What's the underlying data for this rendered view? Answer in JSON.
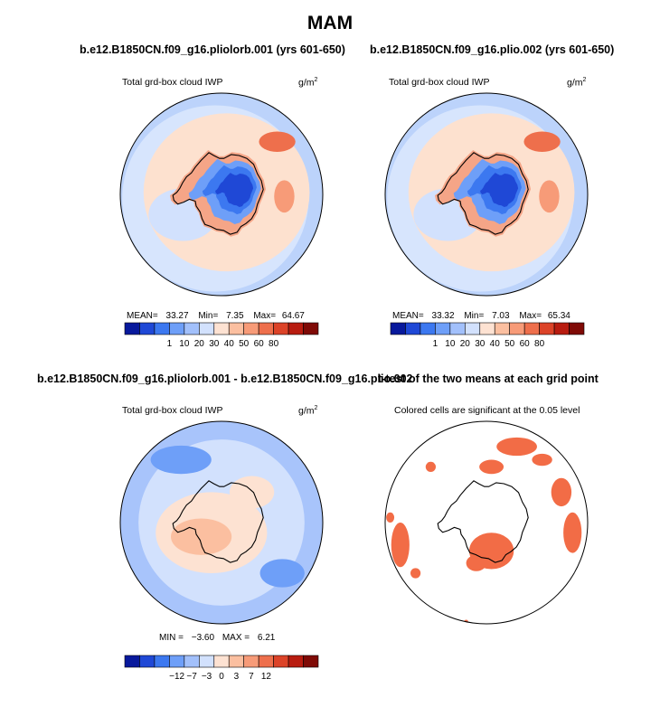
{
  "title": "MAM",
  "panels": [
    {
      "title": "b.e12.B1850CN.f09_g16.pliolorb.001 (yrs 601-650)",
      "variable": "Total grd-box cloud IWP",
      "units": "g/m",
      "units_exp": "2",
      "stats": {
        "mean_label": "MEAN=",
        "mean": "33.27",
        "min_label": "Min=",
        "min": "7.35",
        "max_label": "Max=",
        "max": "64.67"
      }
    },
    {
      "title": "b.e12.B1850CN.f09_g16.plio.002 (yrs 601-650)",
      "variable": "Total grd-box cloud IWP",
      "units": "g/m",
      "units_exp": "2",
      "stats": {
        "mean_label": "MEAN=",
        "mean": "33.32",
        "min_label": "Min=",
        "min": "7.03",
        "max_label": "Max=",
        "max": "65.34"
      }
    },
    {
      "title": "b.e12.B1850CN.f09_g16.pliolorb.001 - b.e12.B1850CN.f09_g16.plio.002",
      "variable": "Total grd-box cloud IWP",
      "units": "g/m",
      "units_exp": "2",
      "stats": {
        "min_label": "MIN =",
        "min": "−3.60",
        "max_label": "MAX =",
        "max": "6.21"
      }
    },
    {
      "title": "t-test of the two means at each grid point",
      "subtitle": "Colored cells are significant at the 0.05 level"
    }
  ],
  "colorbars": {
    "mean": {
      "labels": [
        "1",
        "10",
        "20",
        "30",
        "40",
        "50",
        "60",
        "80"
      ],
      "colors": [
        "#08199c",
        "#1f48d6",
        "#3c78f0",
        "#6e9ff8",
        "#a2c0fb",
        "#d2e1fd",
        "#fde2d2",
        "#fbbfa0",
        "#f79b78",
        "#ee6f4c",
        "#dc4328",
        "#b81c10",
        "#7f0a06"
      ]
    },
    "diff": {
      "labels": [
        "−12",
        "−7",
        "−3",
        "0",
        "3",
        "7",
        "12"
      ],
      "colors": [
        "#08199c",
        "#1f48d6",
        "#3c78f0",
        "#6e9ff8",
        "#a2c0fb",
        "#d2e1fd",
        "#fde2d2",
        "#fbbfa0",
        "#f79b78",
        "#ee6f4c",
        "#dc4328",
        "#b81c10",
        "#7f0a06"
      ]
    }
  },
  "chart_data": [
    {
      "type": "heatmap",
      "title": "b.e12.B1850CN.f09_g16.pliolorb.001 (yrs 601-650)",
      "variable": "Total grd-box cloud IWP",
      "units": "g/m2",
      "projection": "south polar stereographic",
      "mean": 33.27,
      "min": 7.35,
      "max": 64.67,
      "contour_levels": [
        1,
        5,
        10,
        15,
        20,
        25,
        30,
        35,
        40,
        45,
        50,
        60,
        70,
        80
      ]
    },
    {
      "type": "heatmap",
      "title": "b.e12.B1850CN.f09_g16.plio.002 (yrs 601-650)",
      "variable": "Total grd-box cloud IWP",
      "units": "g/m2",
      "projection": "south polar stereographic",
      "mean": 33.32,
      "min": 7.03,
      "max": 65.34,
      "contour_levels": [
        1,
        5,
        10,
        15,
        20,
        25,
        30,
        35,
        40,
        45,
        50,
        60,
        70,
        80
      ]
    },
    {
      "type": "heatmap",
      "title": "b.e12.B1850CN.f09_g16.pliolorb.001 - b.e12.B1850CN.f09_g16.plio.002",
      "variable": "Total grd-box cloud IWP",
      "units": "g/m2",
      "projection": "south polar stereographic",
      "min": -3.6,
      "max": 6.21,
      "contour_levels": [
        -12,
        -7,
        -3,
        0,
        3,
        7,
        12
      ]
    },
    {
      "type": "heatmap",
      "title": "t-test of the two means at each grid point",
      "note": "Colored cells are significant at the 0.05 level",
      "significance_level": 0.05
    }
  ]
}
